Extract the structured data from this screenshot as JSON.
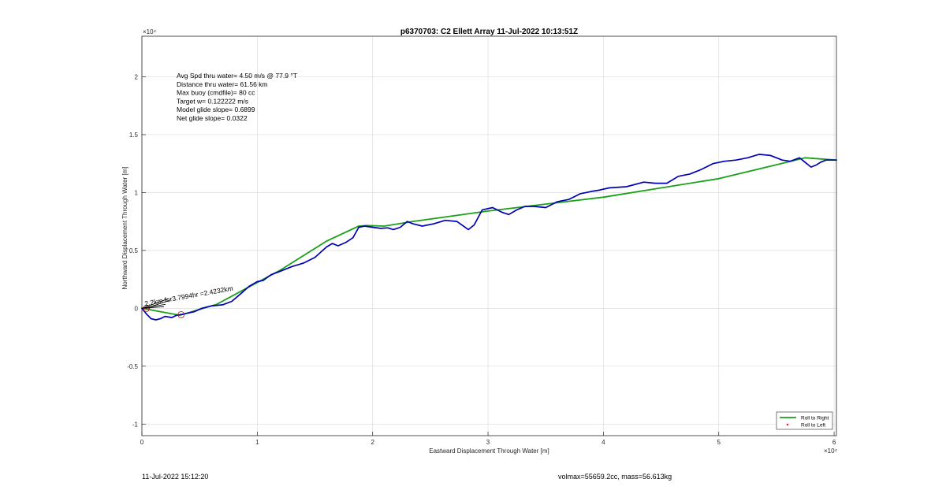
{
  "chart_data": {
    "type": "line",
    "title": "p6370703: C2 Ellett Array 11-Jul-2022 10:13:51Z",
    "xlabel": "Eastward Displacement Through Water [m]",
    "ylabel": "Northward Displacement Through Water [m]",
    "x_multiplier": "×10⁴",
    "y_multiplier": "×10⁴",
    "xlim": [
      0,
      60200
    ],
    "ylim": [
      -11000,
      23500
    ],
    "xticks": [
      0,
      10000,
      20000,
      30000,
      40000,
      50000,
      60000
    ],
    "xtick_labels": [
      "0",
      "1",
      "2",
      "3",
      "4",
      "5",
      "6"
    ],
    "yticks": [
      -10000,
      -5000,
      0,
      5000,
      10000,
      15000,
      20000
    ],
    "ytick_labels": [
      "-1",
      "-0.5",
      "0",
      "0.5",
      "1",
      "1.5",
      "2"
    ],
    "grid": true,
    "legend_position": "bottom-right",
    "legend": [
      {
        "label": "Roll to Right",
        "color": "#1aa01a",
        "style": "line"
      },
      {
        "label": "Roll to Left",
        "color": "#e8202a",
        "style": "dot"
      }
    ],
    "stats_lines": [
      "Avg Spd thru water=  4.50 m/s @  77.9 °T",
      "Distance thru water= 61.56 km",
      "Max buoy (cmdfile)= 80 cc",
      "Target w= 0.122222 m/s",
      "Model glide slope= 0.6899",
      "Net glide slope= 0.0322"
    ],
    "annotation": "2.2km for3.7994hr =2.4232km",
    "series": [
      {
        "name": "Roll to Right",
        "color": "#1aa01a",
        "x": [
          0,
          3300,
          6500,
          9000,
          12000,
          16000,
          18800,
          19500,
          21000,
          23500,
          30000,
          40000,
          45000,
          50000,
          55000,
          57500,
          60200
        ],
        "y": [
          0,
          -600,
          350,
          1700,
          3300,
          5800,
          7100,
          7150,
          7100,
          7500,
          8400,
          9600,
          10400,
          11200,
          12400,
          13000,
          12800
        ]
      },
      {
        "name": "blue track",
        "color": "#0000b4",
        "x": [
          0,
          400,
          800,
          1200,
          1600,
          2000,
          2600,
          3000,
          3600,
          4500,
          5200,
          6000,
          7000,
          7800,
          8500,
          9300,
          10000,
          10500,
          11200,
          12000,
          13000,
          14000,
          15000,
          16000,
          16500,
          17000,
          17700,
          18300,
          18800,
          19300,
          20000,
          20700,
          21300,
          21800,
          22400,
          23000,
          23500,
          24300,
          25300,
          26300,
          27300,
          28300,
          28800,
          29500,
          30400,
          31200,
          31800,
          32500,
          33200,
          34000,
          35000,
          36000,
          37000,
          38000,
          39000,
          39600,
          40500,
          42000,
          43500,
          44500,
          45500,
          46500,
          47500,
          48500,
          49500,
          50500,
          51500,
          52500,
          53500,
          54500,
          55500,
          56200,
          57000,
          57500,
          58000,
          58500,
          58800,
          59300,
          59800,
          60200
        ],
        "y": [
          0,
          -500,
          -900,
          -1000,
          -900,
          -700,
          -800,
          -600,
          -500,
          -300,
          0,
          200,
          300,
          600,
          1200,
          1900,
          2300,
          2400,
          2900,
          3200,
          3600,
          3900,
          4400,
          5300,
          5600,
          5400,
          5700,
          6100,
          7000,
          7100,
          7000,
          6900,
          6950,
          6800,
          7000,
          7500,
          7300,
          7100,
          7300,
          7600,
          7500,
          6800,
          7200,
          8500,
          8700,
          8300,
          8100,
          8500,
          8800,
          8800,
          8700,
          9200,
          9400,
          9900,
          10100,
          10200,
          10400,
          10500,
          10900,
          10800,
          10800,
          11400,
          11600,
          12000,
          12500,
          12700,
          12800,
          13000,
          13300,
          13200,
          12800,
          12700,
          13000,
          12600,
          12200,
          12400,
          12600,
          12800,
          12800,
          12800
        ]
      },
      {
        "name": "Roll to Left",
        "color": "#e8202a",
        "x": [
          300,
          600
        ],
        "y": [
          0,
          0
        ]
      }
    ],
    "markers": [
      {
        "type": "circle",
        "x": 3400,
        "y": -550,
        "color": "#c0202a"
      },
      {
        "type": "circle",
        "x": 400,
        "y": 0,
        "color": "#c0202a"
      }
    ]
  },
  "footer": {
    "date": "11-Jul-2022 15:12:20",
    "vol_mass": "volmax=55659.2cc, mass=56.613kg"
  }
}
